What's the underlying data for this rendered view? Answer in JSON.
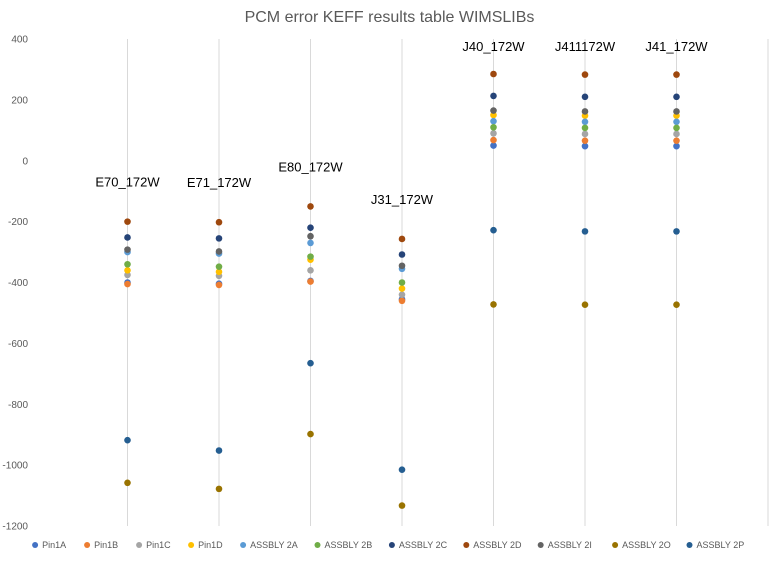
{
  "chart_data": {
    "type": "scatter",
    "title": "PCM error KEFF results table WIMSLIBs",
    "xlabel": "",
    "ylabel": "",
    "ylim": [
      -1200,
      400
    ],
    "yticks": [
      400,
      200,
      0,
      -200,
      -400,
      -600,
      -800,
      -1000,
      -1200
    ],
    "ytick_labels": [
      "400",
      "200",
      "0",
      "-200",
      "-400",
      "-600",
      "-800",
      "-1000",
      "-1200"
    ],
    "xlim": [
      0,
      8
    ],
    "x_gridlines": [
      1,
      2,
      3,
      4,
      5,
      6,
      7
    ],
    "grid": "vertical",
    "legend_position": "bottom",
    "categories": [
      {
        "label": "E70_172W",
        "x": 1
      },
      {
        "label": "E71_172W",
        "x": 2
      },
      {
        "label": "E80_172W",
        "x": 3
      },
      {
        "label": "J31_172W",
        "x": 4
      },
      {
        "label": "J40_172W",
        "x": 5
      },
      {
        "label": "J411172W",
        "x": 6
      },
      {
        "label": "J41_172W",
        "x": 7
      }
    ],
    "series": [
      {
        "name": "Pin1A",
        "color": "#4472C4",
        "values": [
          -400,
          -404,
          -395,
          -455,
          50,
          48,
          48
        ]
      },
      {
        "name": "Pin1B",
        "color": "#ED7D31",
        "values": [
          -405,
          -408,
          -397,
          -460,
          68,
          66,
          66
        ]
      },
      {
        "name": "Pin1C",
        "color": "#A5A5A5",
        "values": [
          -375,
          -378,
          -360,
          -440,
          90,
          88,
          88
        ]
      },
      {
        "name": "Pin1D",
        "color": "#FFC000",
        "values": [
          -360,
          -365,
          -325,
          -420,
          150,
          148,
          148
        ]
      },
      {
        "name": "ASSBLY 2A",
        "color": "#5B9BD5",
        "values": [
          -300,
          -305,
          -270,
          -355,
          130,
          128,
          128
        ]
      },
      {
        "name": "ASSBLY 2B",
        "color": "#70AD47",
        "values": [
          -340,
          -348,
          -315,
          -400,
          110,
          108,
          108
        ]
      },
      {
        "name": "ASSBLY 2C",
        "color": "#264478",
        "values": [
          -252,
          -255,
          -220,
          -308,
          213,
          210,
          210
        ]
      },
      {
        "name": "ASSBLY 2D",
        "color": "#9E480E",
        "values": [
          -200,
          -202,
          -150,
          -257,
          285,
          283,
          283
        ]
      },
      {
        "name": "ASSBLY 2I",
        "color": "#636363",
        "values": [
          -292,
          -298,
          -248,
          -345,
          165,
          162,
          162
        ]
      },
      {
        "name": "ASSBLY 2O",
        "color": "#997300",
        "values": [
          -1058,
          -1078,
          -898,
          -1133,
          -472,
          -473,
          -473
        ]
      },
      {
        "name": "ASSBLY 2P",
        "color": "#255E91",
        "values": [
          -918,
          -952,
          -665,
          -1015,
          -228,
          -232,
          -232
        ]
      }
    ]
  }
}
